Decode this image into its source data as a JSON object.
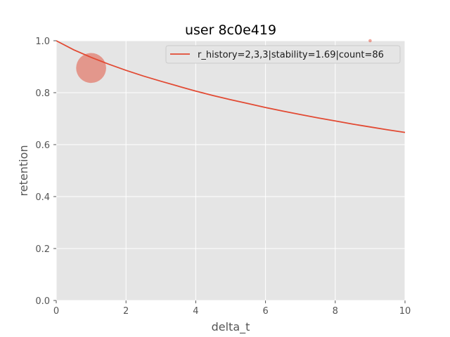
{
  "chart_data": {
    "type": "line",
    "title": "user 8c0e419",
    "xlabel": "delta_t",
    "ylabel": "retention",
    "xlim": [
      0,
      10
    ],
    "ylim": [
      0,
      1
    ],
    "x_ticks": [
      "0",
      "2",
      "4",
      "6",
      "8",
      "10"
    ],
    "y_ticks": [
      "0.0",
      "0.2",
      "0.4",
      "0.6",
      "0.8",
      "1.0"
    ],
    "grid": true,
    "legend_position": "top-right",
    "series": [
      {
        "name": "r_history=2,3,3|stability=1.69|count=86",
        "color": "#E24A33",
        "x": [
          0,
          0.5,
          1,
          1.5,
          2,
          2.5,
          3,
          3.5,
          4,
          4.5,
          5,
          5.5,
          6,
          6.5,
          7,
          7.5,
          8,
          8.5,
          9,
          9.5,
          10
        ],
        "y": [
          1.0,
          0.965,
          0.936,
          0.91,
          0.886,
          0.864,
          0.844,
          0.825,
          0.806,
          0.789,
          0.773,
          0.758,
          0.743,
          0.729,
          0.716,
          0.703,
          0.691,
          0.679,
          0.668,
          0.657,
          0.647
        ]
      }
    ],
    "scatter_points": [
      {
        "x": 1,
        "y": 0.895,
        "size": 86,
        "color": "#E24A33"
      },
      {
        "x": 9,
        "y": 1.0,
        "size": 1,
        "color": "#E24A33"
      }
    ]
  }
}
